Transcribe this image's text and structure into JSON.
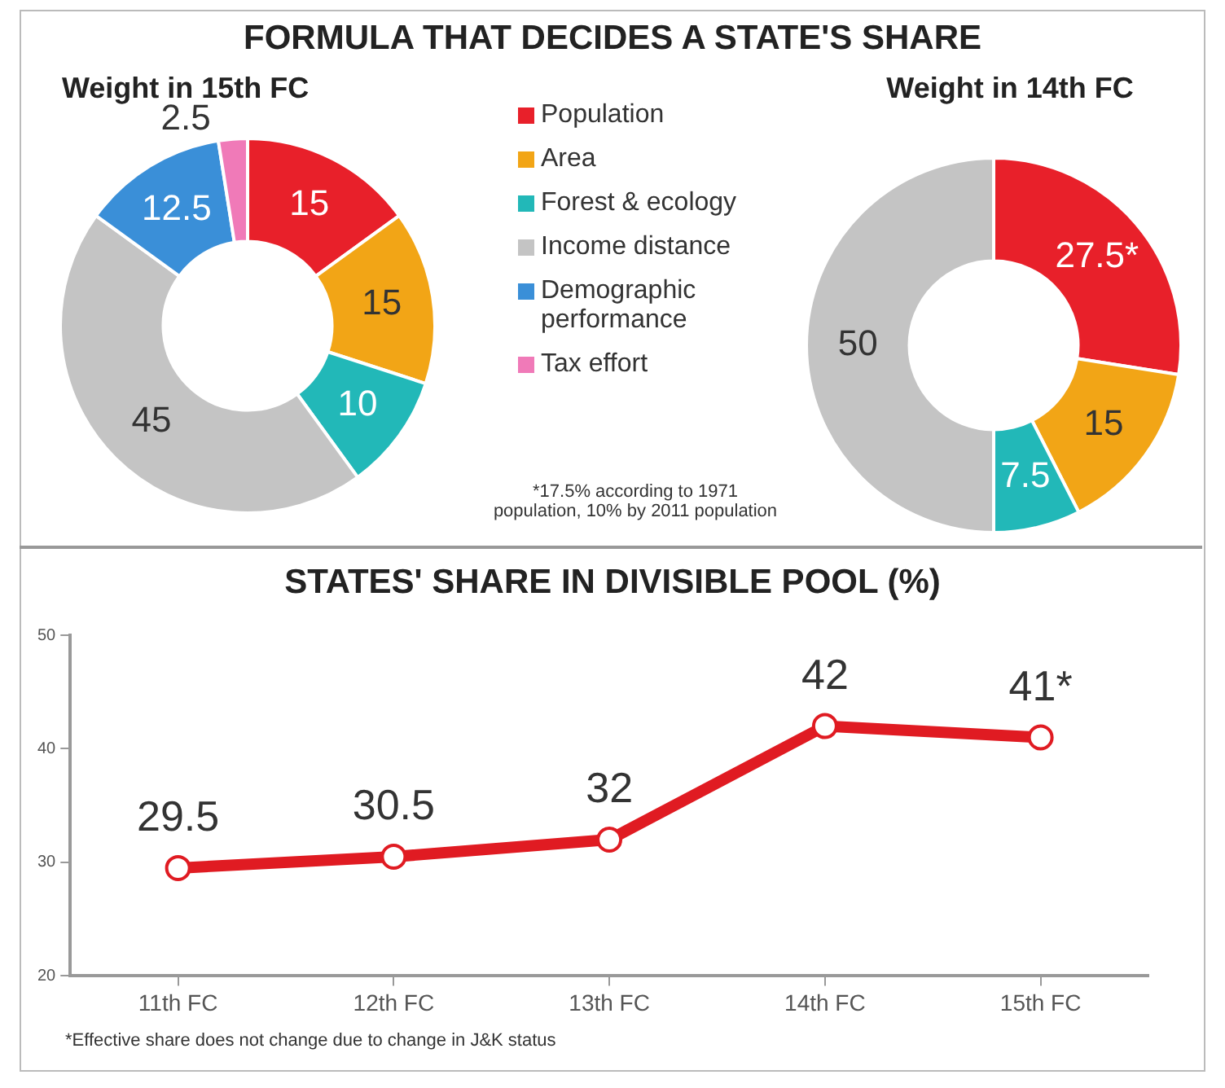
{
  "chart_data": [
    {
      "type": "donut",
      "title": "FORMULA THAT DECIDES A STATE'S SHARE",
      "subtitle": "Weight in 15th FC",
      "categories": [
        "Population",
        "Area",
        "Forest & ecology",
        "Income distance",
        "Demographic performance",
        "Tax effort"
      ],
      "values": [
        15,
        15,
        10,
        45,
        12.5,
        2.5
      ],
      "colors": [
        "#e8202a",
        "#f2a516",
        "#22b8b8",
        "#c4c4c4",
        "#3a8fd8",
        "#f07ab8"
      ],
      "data_labels": true,
      "legend": "right"
    },
    {
      "type": "donut",
      "title": "Weight in 14th FC",
      "categories": [
        null,
        null,
        null,
        null
      ],
      "values": [
        27.5,
        15,
        7.5,
        50
      ],
      "colors": [
        "#e8202a",
        "#f2a516",
        "#22b8b8",
        "#c4c4c4"
      ],
      "value_labels": [
        "27.5*",
        "15",
        "7.5",
        "50"
      ],
      "annotations": [
        "*17.5% according to 1971 population, 10% by 2011 population"
      ]
    },
    {
      "type": "line",
      "title": "STATES' SHARE IN DIVISIBLE POOL (%)",
      "categories": [
        "11th FC",
        "12th FC",
        "13th FC",
        "14th FC",
        "15th FC"
      ],
      "series": [
        {
          "color": "#e01b22",
          "values": [
            29.5,
            30.5,
            32,
            42,
            41
          ]
        }
      ],
      "value_labels": [
        "29.5",
        "30.5",
        "32",
        "42",
        "41*"
      ],
      "ylim": [
        20,
        50
      ],
      "yticks": [
        20,
        30,
        40,
        50
      ],
      "grid": false,
      "marker": "circle",
      "line_style": "solid",
      "annotations": [
        "*Effective share does not change due to change in J&K status"
      ]
    }
  ]
}
